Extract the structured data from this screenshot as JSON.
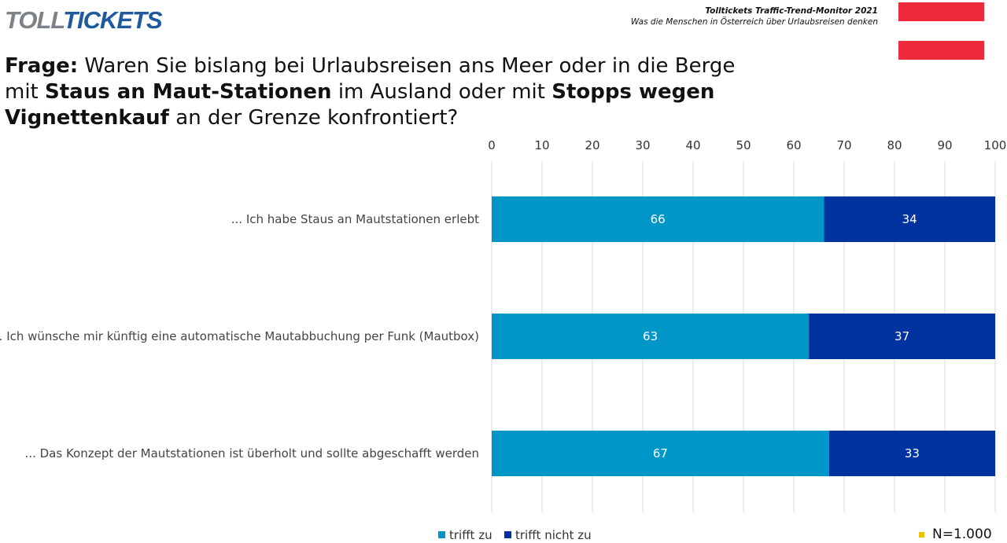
{
  "logo": {
    "part1": "TOLL",
    "part2": "TICKETS",
    "mark": "®"
  },
  "header": {
    "title": "Tolltickets  Traffic-Trend-Monitor 2021",
    "subtitle": "Was die Menschen in Österreich über Urlaubsreisen denken"
  },
  "question": {
    "prefix": "Frage:",
    "t1": " Waren Sie bislang bei Urlaubsreisen ans Meer oder in die Berge mit ",
    "b1": "Staus an Maut-Stationen",
    "t2": " im Ausland oder mit ",
    "b2": "Stopps wegen Vignettenkauf",
    "t3": " an der Grenze konfrontiert?"
  },
  "sample": "N=1.000",
  "colors": {
    "trifft_zu": "#0096c8",
    "trifft_nicht_zu": "#0033a0",
    "flag": "#ee2a3c"
  },
  "chart_data": {
    "type": "bar",
    "orientation": "horizontal",
    "stacked": true,
    "categories": [
      "... Ich habe Staus an Mautstationen erlebt",
      "... Ich wünsche mir künftig eine automatische Mautabbuchung per Funk (Mautbox)",
      "... Das Konzept der Mautstationen ist überholt und sollte abgeschafft werden"
    ],
    "series": [
      {
        "name": "trifft zu",
        "values": [
          66,
          63,
          67
        ]
      },
      {
        "name": "trifft nicht zu",
        "values": [
          34,
          37,
          33
        ]
      }
    ],
    "xlim": [
      0,
      100
    ],
    "xticks": [
      0,
      10,
      20,
      30,
      40,
      50,
      60,
      70,
      80,
      90,
      100
    ],
    "grid": true,
    "legend": "bottom"
  }
}
